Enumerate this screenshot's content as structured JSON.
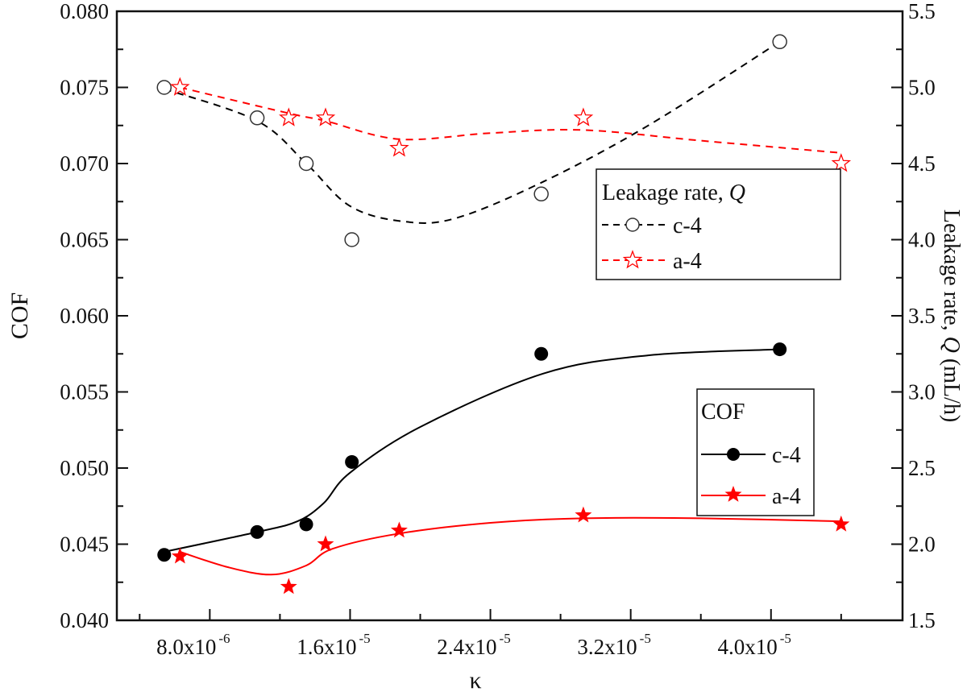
{
  "chart_data": {
    "type": "line",
    "xlabel": "κ",
    "ylabel_left": "COF",
    "ylabel_right": {
      "prefix": "Leakage rate, ",
      "italic": "Q",
      "suffix": " (mL/h)"
    },
    "xlim": [
      2.7e-06,
      4.75e-05
    ],
    "ylim_left": [
      0.04,
      0.08
    ],
    "ylim_right": [
      1.5,
      5.5
    ],
    "grid": false,
    "x_ticks": [
      {
        "value": 8e-06,
        "base": "8.0x10",
        "exp": "-6"
      },
      {
        "value": 1.6e-05,
        "base": "1.6x10",
        "exp": "-5"
      },
      {
        "value": 2.4e-05,
        "base": "2.4x10",
        "exp": "-5"
      },
      {
        "value": 3.2e-05,
        "base": "3.2x10",
        "exp": "-5"
      },
      {
        "value": 4e-05,
        "base": "4.0x10",
        "exp": "-5"
      }
    ],
    "y_left_ticks": [
      "0.040",
      "0.045",
      "0.050",
      "0.055",
      "0.060",
      "0.065",
      "0.070",
      "0.075",
      "0.080"
    ],
    "y_right_ticks": [
      "1.5",
      "2.0",
      "2.5",
      "3.0",
      "3.5",
      "4.0",
      "4.5",
      "5.0",
      "5.5"
    ],
    "legends": [
      {
        "title": "Leakage rate, ",
        "title_italic": "Q",
        "placement": "center-right",
        "entries": [
          "c-4",
          "a-4"
        ]
      },
      {
        "title": "COF",
        "placement": "lower-right",
        "entries": [
          "c-4",
          "a-4"
        ]
      }
    ],
    "series": [
      {
        "name": "c-4",
        "group": "COF",
        "axis": "left",
        "color": "#000000",
        "marker": "filled-circle",
        "line": "solid",
        "x": [
          5.4e-06,
          1.07e-05,
          1.35e-05,
          1.61e-05,
          2.69e-05,
          4.05e-05
        ],
        "y": [
          0.0443,
          0.0458,
          0.0463,
          0.0504,
          0.0575,
          0.0578
        ],
        "fit_x": [
          5.4e-06,
          1.07e-05,
          1.3e-05,
          1.45e-05,
          1.6e-05,
          2e-05,
          2.7e-05,
          3.3e-05,
          4.05e-05
        ],
        "fit_y": [
          0.0445,
          0.0458,
          0.0465,
          0.0477,
          0.0497,
          0.0527,
          0.0562,
          0.0574,
          0.0578
        ]
      },
      {
        "name": "a-4",
        "group": "COF",
        "axis": "left",
        "color": "#ff0000",
        "marker": "filled-star",
        "line": "solid",
        "x": [
          6.3e-06,
          1.25e-05,
          1.46e-05,
          1.88e-05,
          2.93e-05,
          4.4e-05
        ],
        "y": [
          0.0442,
          0.0422,
          0.045,
          0.0459,
          0.0469,
          0.0463
        ],
        "fit_x": [
          6.3e-06,
          9e-06,
          1.15e-05,
          1.35e-05,
          1.5e-05,
          1.88e-05,
          2.4e-05,
          2.93e-05,
          3.6e-05,
          4.4e-05
        ],
        "fit_y": [
          0.0445,
          0.0435,
          0.043,
          0.0436,
          0.0447,
          0.0457,
          0.0464,
          0.0467,
          0.0467,
          0.0465
        ]
      },
      {
        "name": "c-4",
        "group": "Leakage rate, Q",
        "axis": "right",
        "color": "#000000",
        "marker": "open-circle",
        "line": "dashed",
        "x": [
          5.4e-06,
          1.07e-05,
          1.35e-05,
          1.61e-05,
          2.69e-05,
          4.05e-05
        ],
        "y": [
          5.0,
          4.8,
          4.5,
          4.0,
          4.3,
          5.3
        ],
        "fit_x": [
          5.4e-06,
          1.07e-05,
          1.35e-05,
          1.6e-05,
          1.9e-05,
          2.2e-05,
          2.7e-05,
          3.3e-05,
          4.05e-05
        ],
        "fit_y": [
          4.99,
          4.78,
          4.5,
          4.22,
          4.12,
          4.14,
          4.38,
          4.75,
          5.3
        ]
      },
      {
        "name": "a-4",
        "group": "Leakage rate, Q",
        "axis": "right",
        "color": "#ff0000",
        "marker": "open-star",
        "line": "dashed",
        "x": [
          6.3e-06,
          1.25e-05,
          1.46e-05,
          1.88e-05,
          2.93e-05,
          4.4e-05
        ],
        "y": [
          5.0,
          4.8,
          4.8,
          4.6,
          4.8,
          4.5
        ],
        "fit_x": [
          6.3e-06,
          1.25e-05,
          1.46e-05,
          1.88e-05,
          2.4e-05,
          2.93e-05,
          3.6e-05,
          4.4e-05
        ],
        "fit_y": [
          5.0,
          4.83,
          4.78,
          4.66,
          4.7,
          4.72,
          4.65,
          4.57
        ]
      }
    ]
  }
}
